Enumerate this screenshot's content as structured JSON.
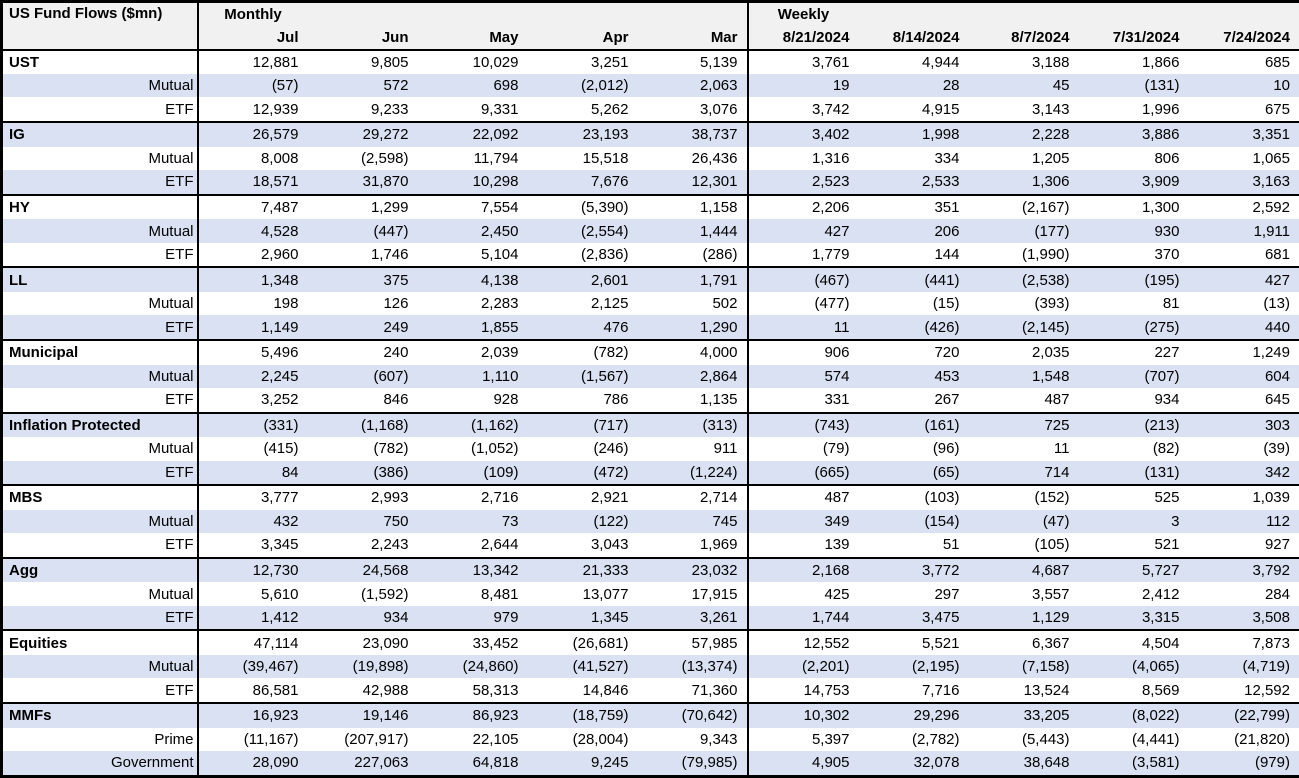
{
  "colors": {
    "stripe": "#d9e1f2",
    "header_bg": "#f1f1f1",
    "border": "#000000",
    "text": "#000000",
    "background": "#ffffff"
  },
  "chart_data": {
    "type": "table",
    "title": "US Fund Flows ($mn)",
    "section_labels": [
      "Monthly",
      "Weekly"
    ],
    "monthly_span": 5,
    "weekly_span": 5,
    "columns": [
      "Jul",
      "Jun",
      "May",
      "Apr",
      "Mar",
      "8/21/2024",
      "8/14/2024",
      "8/7/2024",
      "7/31/2024",
      "7/24/2024"
    ],
    "negative_format": "parentheses",
    "rows": [
      {
        "group": "UST",
        "label": "UST",
        "level": "total",
        "values": [
          12881,
          9805,
          10029,
          3251,
          5139,
          3761,
          4944,
          3188,
          1866,
          685
        ]
      },
      {
        "group": "UST",
        "label": "Mutual",
        "level": "sub",
        "values": [
          -57,
          572,
          698,
          -2012,
          2063,
          19,
          28,
          45,
          -131,
          10
        ]
      },
      {
        "group": "UST",
        "label": "ETF",
        "level": "sub",
        "values": [
          12939,
          9233,
          9331,
          5262,
          3076,
          3742,
          4915,
          3143,
          1996,
          675
        ]
      },
      {
        "group": "IG",
        "label": "IG",
        "level": "total",
        "values": [
          26579,
          29272,
          22092,
          23193,
          38737,
          3402,
          1998,
          2228,
          3886,
          3351
        ]
      },
      {
        "group": "IG",
        "label": "Mutual",
        "level": "sub",
        "values": [
          8008,
          -2598,
          11794,
          15518,
          26436,
          1316,
          334,
          1205,
          806,
          1065
        ]
      },
      {
        "group": "IG",
        "label": "ETF",
        "level": "sub",
        "values": [
          18571,
          31870,
          10298,
          7676,
          12301,
          2523,
          2533,
          1306,
          3909,
          3163
        ]
      },
      {
        "group": "HY",
        "label": "HY",
        "level": "total",
        "values": [
          7487,
          1299,
          7554,
          -5390,
          1158,
          2206,
          351,
          -2167,
          1300,
          2592
        ]
      },
      {
        "group": "HY",
        "label": "Mutual",
        "level": "sub",
        "values": [
          4528,
          -447,
          2450,
          -2554,
          1444,
          427,
          206,
          -177,
          930,
          1911
        ]
      },
      {
        "group": "HY",
        "label": "ETF",
        "level": "sub",
        "values": [
          2960,
          1746,
          5104,
          -2836,
          -286,
          1779,
          144,
          -1990,
          370,
          681
        ]
      },
      {
        "group": "LL",
        "label": "LL",
        "level": "total",
        "values": [
          1348,
          375,
          4138,
          2601,
          1791,
          -467,
          -441,
          -2538,
          -195,
          427
        ]
      },
      {
        "group": "LL",
        "label": "Mutual",
        "level": "sub",
        "values": [
          198,
          126,
          2283,
          2125,
          502,
          -477,
          -15,
          -393,
          81,
          -13
        ]
      },
      {
        "group": "LL",
        "label": "ETF",
        "level": "sub",
        "values": [
          1149,
          249,
          1855,
          476,
          1290,
          11,
          -426,
          -2145,
          -275,
          440
        ]
      },
      {
        "group": "Municipal",
        "label": "Municipal",
        "level": "total",
        "values": [
          5496,
          240,
          2039,
          -782,
          4000,
          906,
          720,
          2035,
          227,
          1249
        ]
      },
      {
        "group": "Municipal",
        "label": "Mutual",
        "level": "sub",
        "values": [
          2245,
          -607,
          1110,
          -1567,
          2864,
          574,
          453,
          1548,
          -707,
          604
        ]
      },
      {
        "group": "Municipal",
        "label": "ETF",
        "level": "sub",
        "values": [
          3252,
          846,
          928,
          786,
          1135,
          331,
          267,
          487,
          934,
          645
        ]
      },
      {
        "group": "Inflation Protected",
        "label": "Inflation Protected",
        "level": "total",
        "values": [
          -331,
          -1168,
          -1162,
          -717,
          -313,
          -743,
          -161,
          725,
          -213,
          303
        ]
      },
      {
        "group": "Inflation Protected",
        "label": "Mutual",
        "level": "sub",
        "values": [
          -415,
          -782,
          -1052,
          -246,
          911,
          -79,
          -96,
          11,
          -82,
          -39
        ]
      },
      {
        "group": "Inflation Protected",
        "label": "ETF",
        "level": "sub",
        "values": [
          84,
          -386,
          -109,
          -472,
          -1224,
          -665,
          -65,
          714,
          -131,
          342
        ]
      },
      {
        "group": "MBS",
        "label": "MBS",
        "level": "total",
        "values": [
          3777,
          2993,
          2716,
          2921,
          2714,
          487,
          -103,
          -152,
          525,
          1039
        ]
      },
      {
        "group": "MBS",
        "label": "Mutual",
        "level": "sub",
        "values": [
          432,
          750,
          73,
          -122,
          745,
          349,
          -154,
          -47,
          3,
          112
        ]
      },
      {
        "group": "MBS",
        "label": "ETF",
        "level": "sub",
        "values": [
          3345,
          2243,
          2644,
          3043,
          1969,
          139,
          51,
          -105,
          521,
          927
        ]
      },
      {
        "group": "Agg",
        "label": "Agg",
        "level": "total",
        "values": [
          12730,
          24568,
          13342,
          21333,
          23032,
          2168,
          3772,
          4687,
          5727,
          3792
        ]
      },
      {
        "group": "Agg",
        "label": "Mutual",
        "level": "sub",
        "values": [
          5610,
          -1592,
          8481,
          13077,
          17915,
          425,
          297,
          3557,
          2412,
          284
        ]
      },
      {
        "group": "Agg",
        "label": "ETF",
        "level": "sub",
        "values": [
          1412,
          934,
          979,
          1345,
          3261,
          1744,
          3475,
          1129,
          3315,
          3508
        ]
      },
      {
        "group": "Equities",
        "label": "Equities",
        "level": "total",
        "values": [
          47114,
          23090,
          33452,
          -26681,
          57985,
          12552,
          5521,
          6367,
          4504,
          7873
        ]
      },
      {
        "group": "Equities",
        "label": "Mutual",
        "level": "sub",
        "values": [
          -39467,
          -19898,
          -24860,
          -41527,
          -13374,
          -2201,
          -2195,
          -7158,
          -4065,
          -4719
        ]
      },
      {
        "group": "Equities",
        "label": "ETF",
        "level": "sub",
        "values": [
          86581,
          42988,
          58313,
          14846,
          71360,
          14753,
          7716,
          13524,
          8569,
          12592
        ]
      },
      {
        "group": "MMFs",
        "label": "MMFs",
        "level": "total",
        "values": [
          16923,
          19146,
          86923,
          -18759,
          -70642,
          10302,
          29296,
          33205,
          -8022,
          -22799
        ]
      },
      {
        "group": "MMFs",
        "label": "Prime",
        "level": "sub",
        "values": [
          -11167,
          -207917,
          22105,
          -28004,
          9343,
          5397,
          -2782,
          -5443,
          -4441,
          -21820
        ]
      },
      {
        "group": "MMFs",
        "label": "Government",
        "level": "sub",
        "values": [
          28090,
          227063,
          64818,
          9245,
          -79985,
          4905,
          32078,
          38648,
          -3581,
          -979
        ]
      }
    ]
  }
}
